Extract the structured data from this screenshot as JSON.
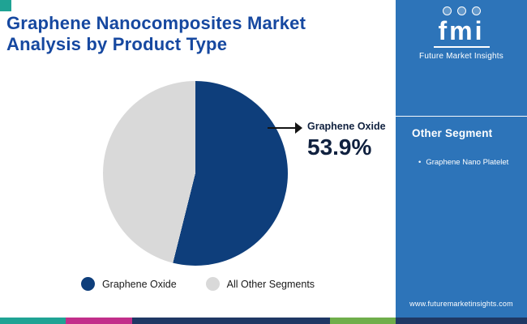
{
  "accent": {
    "square_color": "#1fa394"
  },
  "header": {
    "title_line1": "Graphene Nanocomposites Market",
    "title_line2": "Analysis by Product Type"
  },
  "chart_data": {
    "type": "pie",
    "title": "Graphene Nanocomposites Market Analysis by Product Type",
    "slices": [
      {
        "label": "Graphene Oxide",
        "value": 53.9,
        "color": "#0e3e7b"
      },
      {
        "label": "All Other Segments",
        "value": 46.1,
        "color": "#d9d9d9"
      }
    ],
    "callout": {
      "label": "Graphene Oxide",
      "value_text": "53.9%"
    },
    "legend_position": "bottom",
    "start_angle_deg": 0,
    "direction": "clockwise"
  },
  "sidebar": {
    "background": "#2d74b9",
    "logo_text": "fmi",
    "brand_name": "Future Market Insights",
    "section_title": "Other Segment",
    "bullet": "•",
    "items": [
      {
        "label": "Graphene Nano Platelet"
      }
    ],
    "url": "www.futuremarketinsights.com"
  },
  "footer": {
    "stripe": [
      {
        "color": "#1fa394"
      },
      {
        "color": "#c22e8a"
      },
      {
        "color": "#1f3864"
      },
      {
        "color": "#6fae4b"
      },
      {
        "color": "#1f3864"
      }
    ]
  }
}
